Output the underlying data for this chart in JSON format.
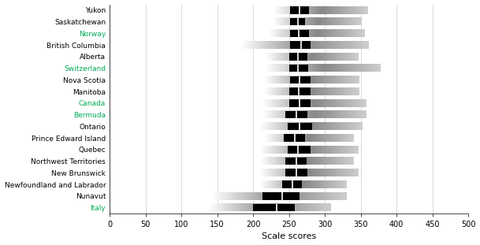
{
  "categories": [
    "Yukon",
    "Saskatchewan",
    "Norway",
    "British Columbia",
    "Alberta",
    "Switzerland",
    "Nova Scotia",
    "Manitoba",
    "Canada",
    "Bermuda",
    "Ontario",
    "Prince Edward Island",
    "Quebec",
    "Northwest Territories",
    "New Brunswick",
    "Newfoundland and Labrador",
    "Nunavut",
    "Italy"
  ],
  "label_colors": [
    "black",
    "black",
    "#00aa55",
    "black",
    "black",
    "#00aa55",
    "black",
    "black",
    "#00aa55",
    "#00aa55",
    "black",
    "black",
    "black",
    "black",
    "black",
    "black",
    "black",
    "#00aa55"
  ],
  "bars": [
    {
      "ci_low": 230,
      "q1": 252,
      "mean": 265,
      "q3": 278,
      "ci_high": 360
    },
    {
      "ci_low": 228,
      "q1": 252,
      "mean": 262,
      "q3": 272,
      "ci_high": 350
    },
    {
      "ci_low": 222,
      "q1": 252,
      "mean": 264,
      "q3": 278,
      "ci_high": 355
    },
    {
      "ci_low": 183,
      "q1": 252,
      "mean": 267,
      "q3": 280,
      "ci_high": 360
    },
    {
      "ci_low": 218,
      "q1": 250,
      "mean": 263,
      "q3": 276,
      "ci_high": 347
    },
    {
      "ci_low": 218,
      "q1": 250,
      "mean": 263,
      "q3": 277,
      "ci_high": 378
    },
    {
      "ci_low": 215,
      "q1": 252,
      "mean": 265,
      "q3": 280,
      "ci_high": 347
    },
    {
      "ci_low": 215,
      "q1": 250,
      "mean": 264,
      "q3": 280,
      "ci_high": 347
    },
    {
      "ci_low": 213,
      "q1": 250,
      "mean": 265,
      "q3": 280,
      "ci_high": 357
    },
    {
      "ci_low": 213,
      "q1": 245,
      "mean": 260,
      "q3": 276,
      "ci_high": 357
    },
    {
      "ci_low": 210,
      "q1": 248,
      "mean": 265,
      "q3": 282,
      "ci_high": 352
    },
    {
      "ci_low": 215,
      "q1": 243,
      "mean": 258,
      "q3": 272,
      "ci_high": 340
    },
    {
      "ci_low": 210,
      "q1": 248,
      "mean": 263,
      "q3": 280,
      "ci_high": 347
    },
    {
      "ci_low": 210,
      "q1": 245,
      "mean": 260,
      "q3": 275,
      "ci_high": 340
    },
    {
      "ci_low": 210,
      "q1": 245,
      "mean": 260,
      "q3": 276,
      "ci_high": 347
    },
    {
      "ci_low": 210,
      "q1": 240,
      "mean": 255,
      "q3": 268,
      "ci_high": 330
    },
    {
      "ci_low": 143,
      "q1": 213,
      "mean": 240,
      "q3": 265,
      "ci_high": 330
    },
    {
      "ci_low": 138,
      "q1": 200,
      "mean": 233,
      "q3": 258,
      "ci_high": 308
    }
  ],
  "xlim": [
    0,
    500
  ],
  "xticks": [
    0,
    50,
    100,
    150,
    200,
    250,
    300,
    350,
    400,
    450,
    500
  ],
  "xlabel": "Scale scores",
  "bar_height": 0.65,
  "background_color": "#ffffff",
  "figsize": [
    6.09,
    3.11
  ],
  "dpi": 100
}
